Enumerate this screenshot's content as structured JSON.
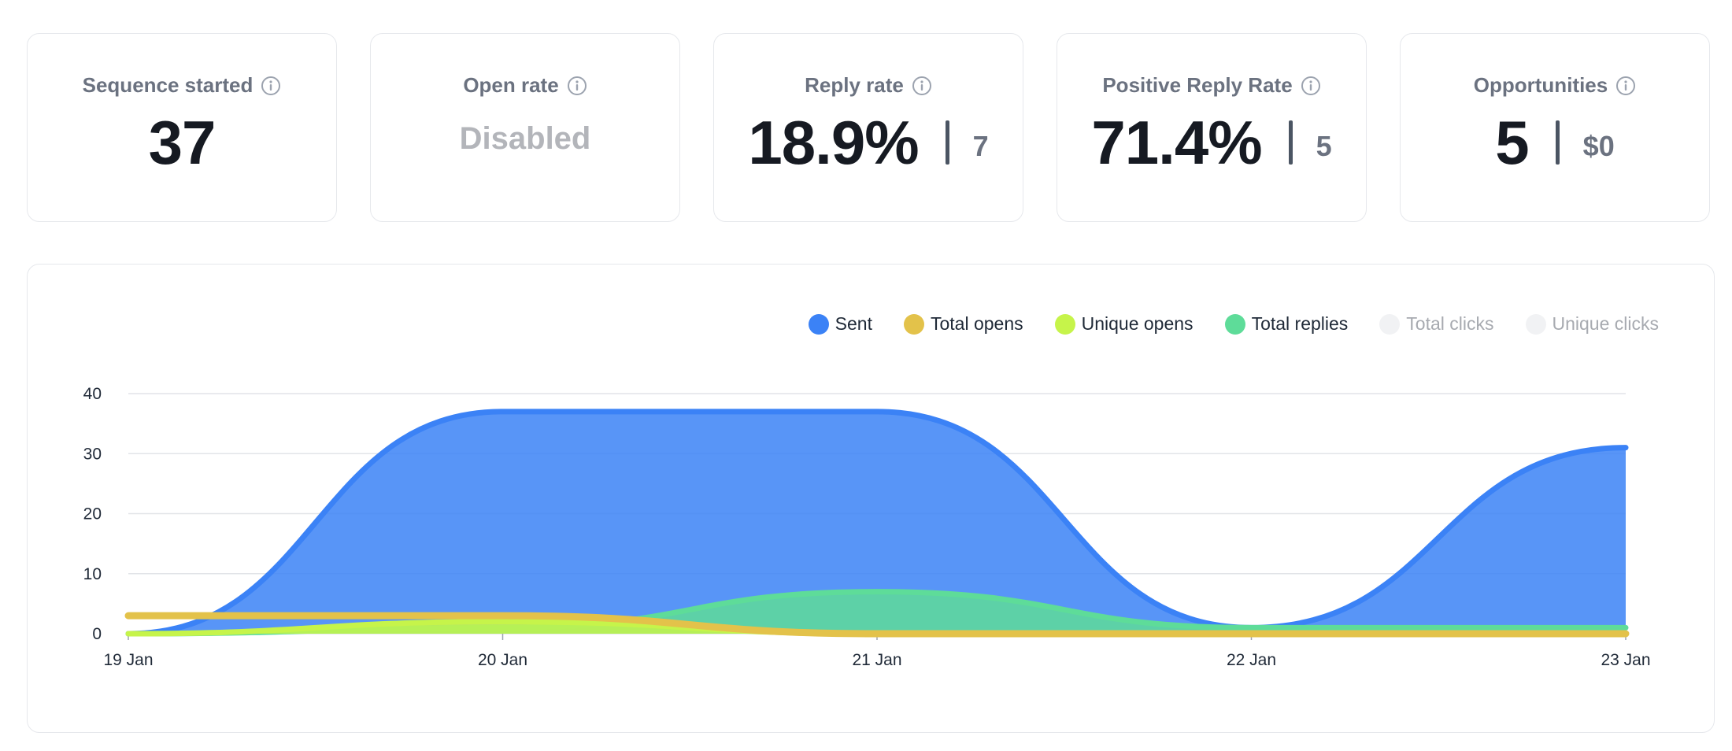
{
  "cards": [
    {
      "title": "Sequence started",
      "value": "37",
      "secondary": null,
      "disabled": false
    },
    {
      "title": "Open rate",
      "value": "Disabled",
      "secondary": null,
      "disabled": true
    },
    {
      "title": "Reply rate",
      "value": "18.9%",
      "secondary": "7",
      "disabled": false
    },
    {
      "title": "Positive Reply Rate",
      "value": "71.4%",
      "secondary": "5",
      "disabled": false
    },
    {
      "title": "Opportunities",
      "value": "5",
      "secondary": "$0",
      "disabled": false
    }
  ],
  "legend": [
    {
      "label": "Sent",
      "color": "#3b82f6",
      "active": true
    },
    {
      "label": "Total opens",
      "color": "#e3c24a",
      "active": true
    },
    {
      "label": "Unique opens",
      "color": "#c6f44a",
      "active": true
    },
    {
      "label": "Total replies",
      "color": "#5edc99",
      "active": true
    },
    {
      "label": "Total clicks",
      "color": "#f1f2f4",
      "active": false
    },
    {
      "label": "Unique clicks",
      "color": "#f1f2f4",
      "active": false
    }
  ],
  "chart_data": {
    "type": "area",
    "title": "",
    "xlabel": "",
    "ylabel": "",
    "x": [
      "19 Jan",
      "20 Jan",
      "21 Jan",
      "22 Jan",
      "23 Jan"
    ],
    "ylim": [
      0,
      40
    ],
    "yticks": [
      0,
      10,
      20,
      30,
      40
    ],
    "grid": true,
    "legend_position": "top-right",
    "series": [
      {
        "name": "Sent",
        "color": "#3b82f6",
        "values": [
          0,
          37,
          37,
          1,
          31
        ]
      },
      {
        "name": "Total opens",
        "color": "#e3c24a",
        "values": [
          3,
          3,
          0,
          0,
          0
        ]
      },
      {
        "name": "Unique opens",
        "color": "#c6f44a",
        "values": [
          0,
          2,
          0,
          0,
          0
        ]
      },
      {
        "name": "Total replies",
        "color": "#5edc99",
        "values": [
          0,
          1,
          7,
          1,
          1
        ]
      },
      {
        "name": "Total clicks",
        "color": "#e5e7eb",
        "values": [
          0,
          0,
          0,
          0,
          0
        ],
        "hidden": true
      },
      {
        "name": "Unique clicks",
        "color": "#e5e7eb",
        "values": [
          0,
          0,
          0,
          0,
          0
        ],
        "hidden": true
      }
    ]
  }
}
